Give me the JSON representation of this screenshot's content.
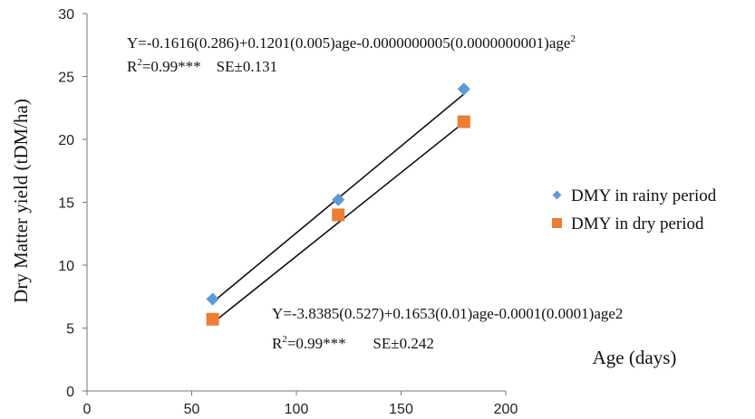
{
  "chart_data": {
    "type": "scatter",
    "xlabel": "Age (days)",
    "ylabel": "Dry Matter yield (tDM/ha)",
    "xlim": [
      0,
      200
    ],
    "ylim": [
      0,
      30
    ],
    "xticks": [
      "0",
      "50",
      "100",
      "150",
      "200"
    ],
    "yticks": [
      "0",
      "5",
      "10",
      "15",
      "20",
      "25",
      "30"
    ],
    "grid": false,
    "legend_position": "right",
    "series": [
      {
        "name": "DMY in rainy period",
        "marker": "diamond",
        "color": "#5b9bd5",
        "x": [
          60,
          120,
          180
        ],
        "y": [
          7.3,
          15.2,
          24.0
        ],
        "trendline": {
          "x": [
            60,
            180
          ],
          "y": [
            7.05,
            23.6
          ]
        }
      },
      {
        "name": "DMY in dry period",
        "marker": "square",
        "color": "#ed7d31",
        "x": [
          60,
          120,
          180
        ],
        "y": [
          5.7,
          14.0,
          21.4
        ],
        "trendline": {
          "x": [
            60,
            180
          ],
          "y": [
            5.4,
            21.35
          ]
        }
      }
    ],
    "annotations": [
      {
        "id": "rainy",
        "line1_prefix": "Y=-0.1616(0.286)+0.1201(0.005)age-0.0000000005(0.0000000001)age",
        "line1_sup": "2",
        "line2_prefix": "R",
        "line2_sup": "2",
        "line2_rest": "=0.99***    SE±0.131"
      },
      {
        "id": "dry",
        "line1": "Y=-3.8385(0.527)+0.1653(0.01)age-0.0001(0.0001)age2",
        "line2_prefix": "R",
        "line2_sup": "2",
        "line2_rest": "=0.99***       SE±0.242"
      }
    ]
  }
}
